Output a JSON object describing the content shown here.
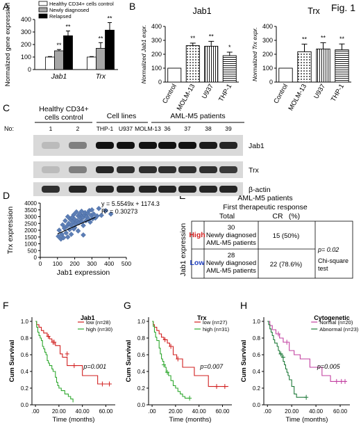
{
  "figure": {
    "title": "Fig. 1"
  },
  "panel_labels": {
    "A": "A",
    "B": "B",
    "C": "C",
    "D": "D",
    "E": "E",
    "F": "F",
    "G": "G",
    "H": "H"
  },
  "colors": {
    "healthy": "#ffffff",
    "newly": "#a6a6a6",
    "relapsed": "#000000",
    "scatter": "#5b7db5",
    "red": "#d11f1f",
    "green": "#2fa82f",
    "blue": "#1f3fbf",
    "pink": "#c23fa0",
    "darkgreen": "#1f7a3a"
  },
  "panelC": {
    "group_healthy": [
      "Healthy CD34+",
      "cells control"
    ],
    "group_cells": "Cell lines",
    "group_aml": "AML-M5 patients",
    "no_label": "No:",
    "lanes": [
      "1",
      "2",
      "THP-1",
      "U937",
      "MOLM-13",
      "36",
      "37",
      "38",
      "39"
    ],
    "rows": [
      "Jab1",
      "Trx",
      "β-actin"
    ]
  },
  "panelE": {
    "title": "AML-M5 patients",
    "subtitle": "First therapeutic response",
    "col_total": "Total",
    "col_cr": "CR",
    "col_pct": "(%)",
    "ylabel": "Jab1 expression",
    "high_label": "High",
    "low_label": "Low",
    "high_total": [
      "30",
      "Newly diagnosed",
      "AML-M5 patients"
    ],
    "low_total": [
      "28",
      "Newly diagnosed",
      "AML-M5 patients"
    ],
    "high_cr": "15 (50%)",
    "low_cr": "22 (78.6%)",
    "pvalue": "p= 0.02",
    "test": [
      "Chi-square",
      "test"
    ]
  },
  "chart_data": [
    {
      "id": "A",
      "type": "bar",
      "categories": [
        "Jab1",
        "Trx"
      ],
      "series": [
        {
          "name": "Healthy CD34+ cells control",
          "values": [
            100,
            100
          ],
          "errors": [
            4,
            4
          ],
          "sig": [
            "",
            ""
          ]
        },
        {
          "name": "Newly diagnosed",
          "values": [
            150,
            170
          ],
          "errors": [
            10,
            45
          ],
          "sig": [
            "**",
            "**"
          ]
        },
        {
          "name": "Relapsed",
          "values": [
            270,
            315
          ],
          "errors": [
            38,
            60
          ],
          "sig": [
            "**",
            "**"
          ]
        }
      ],
      "ylabel": "Normalized gene expression",
      "ylim": [
        0,
        400
      ],
      "yticks": [
        0,
        100,
        200,
        300,
        400
      ]
    },
    {
      "id": "B1",
      "type": "bar",
      "title": "Jab1",
      "categories": [
        "Control",
        "MOLM-13",
        "U937",
        "THP-1"
      ],
      "values": [
        100,
        262,
        258,
        190
      ],
      "errors": [
        0,
        18,
        35,
        25
      ],
      "sig": [
        "",
        "**",
        "**",
        "*"
      ],
      "ylabel": "Normalized Jab1 expr.",
      "ylim": [
        0,
        400
      ],
      "yticks": [
        0,
        100,
        200,
        300,
        400
      ]
    },
    {
      "id": "B2",
      "type": "bar",
      "title": "Trx",
      "categories": [
        "Control",
        "MOLM-13",
        "U937",
        "THP-1"
      ],
      "values": [
        100,
        218,
        238,
        232
      ],
      "errors": [
        0,
        55,
        45,
        42
      ],
      "sig": [
        "",
        "**",
        "**",
        "**"
      ],
      "ylabel": "Normalized Trx expr.",
      "ylim": [
        0,
        400
      ],
      "yticks": [
        0,
        100,
        200,
        300,
        400
      ]
    },
    {
      "id": "D",
      "type": "scatter",
      "equation": "y = 5.5549x + 1174.3",
      "r2": "R² = 0.30273",
      "slope": 5.5549,
      "intercept": 1174.3,
      "xlabel": "Jab1 expression",
      "ylabel": "Trx expression",
      "xlim": [
        0,
        500
      ],
      "ylim": [
        0,
        4000
      ],
      "xticks": [
        0,
        100,
        200,
        300,
        400,
        500
      ],
      "yticks": [
        0,
        500,
        1000,
        1500,
        2000,
        2500,
        3000,
        3500,
        4000
      ],
      "points": [
        [
          105,
          1550
        ],
        [
          110,
          2000
        ],
        [
          120,
          1350
        ],
        [
          125,
          1700
        ],
        [
          130,
          2400
        ],
        [
          135,
          1450
        ],
        [
          140,
          2150
        ],
        [
          145,
          2700
        ],
        [
          150,
          1800
        ],
        [
          155,
          2300
        ],
        [
          160,
          1500
        ],
        [
          160,
          3000
        ],
        [
          165,
          2500
        ],
        [
          170,
          2050
        ],
        [
          175,
          2800
        ],
        [
          180,
          1700
        ],
        [
          180,
          2350
        ],
        [
          185,
          2950
        ],
        [
          190,
          2600
        ],
        [
          195,
          3150
        ],
        [
          200,
          2200
        ],
        [
          200,
          2800
        ],
        [
          205,
          2450
        ],
        [
          210,
          3350
        ],
        [
          215,
          2700
        ],
        [
          220,
          3050
        ],
        [
          220,
          1950
        ],
        [
          225,
          2550
        ],
        [
          230,
          3200
        ],
        [
          235,
          2850
        ],
        [
          240,
          2650
        ],
        [
          240,
          3400
        ],
        [
          245,
          3050
        ],
        [
          250,
          2950
        ],
        [
          250,
          2350
        ],
        [
          255,
          3150
        ],
        [
          260,
          3300
        ],
        [
          265,
          2700
        ],
        [
          270,
          3000
        ],
        [
          275,
          3250
        ],
        [
          280,
          2850
        ],
        [
          285,
          3450
        ],
        [
          290,
          2600
        ],
        [
          295,
          3100
        ],
        [
          300,
          3500
        ],
        [
          305,
          2850
        ],
        [
          310,
          3200
        ],
        [
          320,
          2900
        ],
        [
          330,
          3050
        ],
        [
          340,
          3600
        ],
        [
          355,
          3100
        ],
        [
          380,
          3450
        ],
        [
          410,
          3200
        ],
        [
          250,
          1650
        ],
        [
          195,
          2100
        ]
      ]
    },
    {
      "id": "F",
      "type": "line",
      "title": "Jab1",
      "xlabel": "Time (months)",
      "ylabel": "Cum Survival",
      "xlim": [
        -3,
        68
      ],
      "ylim": [
        0,
        1.05
      ],
      "xticks": [
        ".00",
        "20.00",
        "40.00",
        "60.00"
      ],
      "xtick_values": [
        0,
        20,
        40,
        60
      ],
      "yticks": [
        "0.0",
        "0.2",
        "0.4",
        "0.6",
        "0.8",
        "1.0"
      ],
      "ytick_values": [
        0,
        0.2,
        0.4,
        0.6,
        0.8,
        1.0
      ],
      "pvalue": "p=0.001",
      "series": [
        {
          "name": "low  (n=28)",
          "color": "#d11f1f",
          "steps": [
            [
              0,
              1.0
            ],
            [
              1,
              0.96
            ],
            [
              3,
              0.93
            ],
            [
              5,
              0.89
            ],
            [
              7,
              0.86
            ],
            [
              10,
              0.82
            ],
            [
              12,
              0.79
            ],
            [
              14,
              0.75
            ],
            [
              17,
              0.71
            ],
            [
              21,
              0.61
            ],
            [
              23,
              0.57
            ],
            [
              27,
              0.47
            ],
            [
              40,
              0.35
            ],
            [
              53,
              0.25
            ],
            [
              65,
              0.25
            ]
          ],
          "censored": [
            [
              11,
              0.82
            ],
            [
              15,
              0.75
            ],
            [
              16,
              0.75
            ],
            [
              27,
              0.61
            ],
            [
              33,
              0.47
            ],
            [
              57,
              0.25
            ],
            [
              63,
              0.25
            ]
          ]
        },
        {
          "name": "high (n=30)",
          "color": "#2fa82f",
          "steps": [
            [
              0,
              1.0
            ],
            [
              1,
              0.93
            ],
            [
              2,
              0.87
            ],
            [
              3,
              0.83
            ],
            [
              4,
              0.8
            ],
            [
              5,
              0.77
            ],
            [
              6,
              0.7
            ],
            [
              7,
              0.67
            ],
            [
              8,
              0.63
            ],
            [
              9,
              0.6
            ],
            [
              10,
              0.53
            ],
            [
              11,
              0.5
            ],
            [
              12,
              0.47
            ],
            [
              14,
              0.43
            ],
            [
              15,
              0.4
            ],
            [
              17,
              0.33
            ],
            [
              18,
              0.27
            ],
            [
              19,
              0.23
            ],
            [
              20,
              0.2
            ],
            [
              22,
              0.17
            ],
            [
              25,
              0.13
            ],
            [
              28,
              0.1
            ],
            [
              30,
              0.07
            ],
            [
              32,
              0.03
            ]
          ],
          "censored": []
        }
      ]
    },
    {
      "id": "G",
      "type": "line",
      "title": "Trx",
      "xlabel": "Time (months)",
      "ylabel": "Cum Survival",
      "xlim": [
        -3,
        68
      ],
      "ylim": [
        0,
        1.05
      ],
      "xticks": [
        ".00",
        "20.00",
        "40.00",
        "60.00"
      ],
      "xtick_values": [
        0,
        20,
        40,
        60
      ],
      "yticks": [
        "0.0",
        "0.2",
        "0.4",
        "0.6",
        "0.8",
        "1.0"
      ],
      "ytick_values": [
        0,
        0.2,
        0.4,
        0.6,
        0.8,
        1.0
      ],
      "pvalue": "p=0.007",
      "series": [
        {
          "name": "low  (n=27)",
          "color": "#d11f1f",
          "steps": [
            [
              0,
              1.0
            ],
            [
              1,
              0.96
            ],
            [
              2,
              0.93
            ],
            [
              4,
              0.89
            ],
            [
              6,
              0.85
            ],
            [
              8,
              0.81
            ],
            [
              10,
              0.78
            ],
            [
              13,
              0.74
            ],
            [
              15,
              0.7
            ],
            [
              18,
              0.6
            ],
            [
              21,
              0.55
            ],
            [
              26,
              0.45
            ],
            [
              36,
              0.35
            ],
            [
              48,
              0.22
            ],
            [
              65,
              0.22
            ]
          ],
          "censored": [
            [
              11,
              0.78
            ],
            [
              16,
              0.7
            ],
            [
              22,
              0.55
            ],
            [
              55,
              0.22
            ],
            [
              62,
              0.22
            ]
          ]
        },
        {
          "name": "high (n=31)",
          "color": "#2fa82f",
          "steps": [
            [
              0,
              1.0
            ],
            [
              1,
              0.94
            ],
            [
              2,
              0.87
            ],
            [
              3,
              0.81
            ],
            [
              4,
              0.77
            ],
            [
              6,
              0.68
            ],
            [
              7,
              0.61
            ],
            [
              8,
              0.55
            ],
            [
              9,
              0.52
            ],
            [
              10,
              0.48
            ],
            [
              11,
              0.45
            ],
            [
              12,
              0.39
            ],
            [
              14,
              0.35
            ],
            [
              16,
              0.29
            ],
            [
              18,
              0.23
            ],
            [
              20,
              0.2
            ],
            [
              22,
              0.16
            ],
            [
              24,
              0.13
            ],
            [
              26,
              0.1
            ],
            [
              28,
              0.08
            ],
            [
              32,
              0.08
            ]
          ],
          "censored": [
            [
              10,
              0.48
            ],
            [
              13,
              0.39
            ],
            [
              32,
              0.08
            ]
          ]
        }
      ]
    },
    {
      "id": "H",
      "type": "line",
      "title": "Cytogenetic",
      "xlabel": "Time (months)",
      "ylabel": "Cum Survival",
      "xlim": [
        -3,
        68
      ],
      "ylim": [
        0,
        1.05
      ],
      "xticks": [
        ".00",
        "20.00",
        "40.00",
        "60.00"
      ],
      "xtick_values": [
        0,
        20,
        40,
        60
      ],
      "yticks": [
        "0.0",
        "0.2",
        "0.4",
        "0.6",
        "0.8",
        "1.0"
      ],
      "ytick_values": [
        0,
        0.2,
        0.4,
        0.6,
        0.8,
        1.0
      ],
      "pvalue": "p=0.005",
      "series": [
        {
          "name": "Normal (n=20)",
          "color": "#c23fa0",
          "steps": [
            [
              0,
              1.0
            ],
            [
              2,
              0.95
            ],
            [
              4,
              0.9
            ],
            [
              7,
              0.85
            ],
            [
              10,
              0.8
            ],
            [
              13,
              0.75
            ],
            [
              18,
              0.65
            ],
            [
              22,
              0.6
            ],
            [
              27,
              0.55
            ],
            [
              35,
              0.45
            ],
            [
              45,
              0.35
            ],
            [
              52,
              0.28
            ],
            [
              65,
              0.28
            ]
          ],
          "censored": [
            [
              9,
              0.85
            ],
            [
              16,
              0.75
            ],
            [
              57,
              0.28
            ],
            [
              61,
              0.28
            ],
            [
              64,
              0.28
            ]
          ]
        },
        {
          "name": "Abnormal (n=23)",
          "color": "#1f7a3a",
          "steps": [
            [
              0,
              1.0
            ],
            [
              1,
              0.96
            ],
            [
              2,
              0.91
            ],
            [
              3,
              0.87
            ],
            [
              4,
              0.83
            ],
            [
              5,
              0.78
            ],
            [
              6,
              0.74
            ],
            [
              8,
              0.7
            ],
            [
              9,
              0.65
            ],
            [
              10,
              0.61
            ],
            [
              12,
              0.57
            ],
            [
              13,
              0.52
            ],
            [
              14,
              0.48
            ],
            [
              15,
              0.43
            ],
            [
              16,
              0.39
            ],
            [
              17,
              0.35
            ],
            [
              18,
              0.3
            ],
            [
              20,
              0.22
            ],
            [
              22,
              0.13
            ],
            [
              24,
              0.09
            ],
            [
              32,
              0.09
            ]
          ],
          "censored": [
            [
              11,
              0.61
            ],
            [
              13,
              0.57
            ],
            [
              32,
              0.09
            ]
          ]
        }
      ]
    }
  ]
}
